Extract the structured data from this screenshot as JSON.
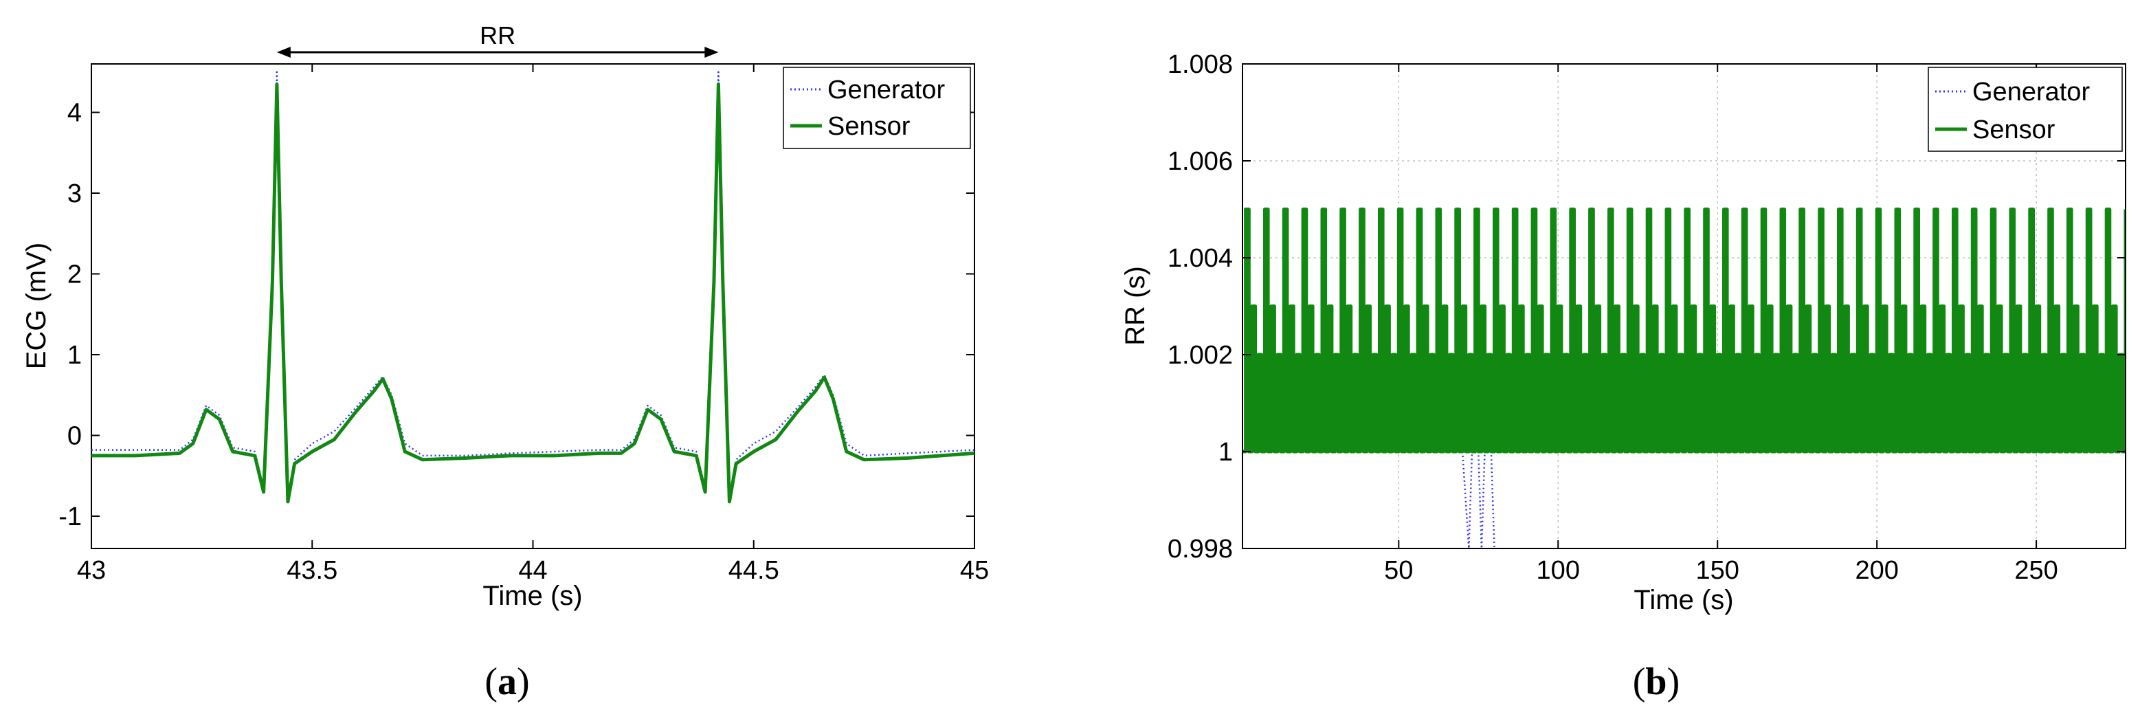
{
  "colors": {
    "generator": "#3333ff",
    "sensor": "#118811"
  },
  "chart_data": [
    {
      "type": "line",
      "panel_label": "a",
      "title": "",
      "xlabel": "Time (s)",
      "ylabel": "ECG (mV)",
      "xlim": [
        43,
        45
      ],
      "ylim": [
        -1.4,
        4.6
      ],
      "xticks": [
        43,
        43.5,
        44,
        44.5,
        45
      ],
      "xtick_labels": [
        "43",
        "43.5",
        "44",
        "44.5",
        "45"
      ],
      "yticks": [
        -1,
        0,
        1,
        2,
        3,
        4
      ],
      "ytick_labels": [
        "-1",
        "0",
        "1",
        "2",
        "3",
        "4"
      ],
      "grid": false,
      "legend_position": "top-right",
      "annotation": {
        "text": "RR",
        "from_x": 43.42,
        "to_x": 44.42
      },
      "series": [
        {
          "name": "Generator",
          "style": "dotted",
          "x": [
            43.0,
            43.1,
            43.2,
            43.23,
            43.26,
            43.29,
            43.32,
            43.37,
            43.39,
            43.41,
            43.42,
            43.43,
            43.445,
            43.46,
            43.5,
            43.55,
            43.6,
            43.64,
            43.66,
            43.68,
            43.71,
            43.75,
            43.85,
            43.95,
            44.05,
            44.15,
            44.2,
            44.23,
            44.26,
            44.29,
            44.32,
            44.37,
            44.39,
            44.41,
            44.42,
            44.43,
            44.445,
            44.46,
            44.5,
            44.55,
            44.6,
            44.64,
            44.66,
            44.68,
            44.71,
            44.75,
            44.85,
            45.0
          ],
          "y": [
            -0.18,
            -0.18,
            -0.18,
            -0.05,
            0.37,
            0.25,
            -0.15,
            -0.2,
            -0.65,
            2.0,
            4.5,
            2.0,
            -0.75,
            -0.3,
            -0.1,
            0.05,
            0.35,
            0.6,
            0.73,
            0.5,
            -0.1,
            -0.25,
            -0.25,
            -0.22,
            -0.2,
            -0.18,
            -0.18,
            -0.05,
            0.37,
            0.25,
            -0.15,
            -0.2,
            -0.65,
            2.0,
            4.5,
            2.0,
            -0.75,
            -0.3,
            -0.1,
            0.05,
            0.35,
            0.6,
            0.75,
            0.5,
            -0.1,
            -0.25,
            -0.22,
            -0.18
          ]
        },
        {
          "name": "Sensor",
          "style": "solid",
          "x": [
            43.0,
            43.1,
            43.2,
            43.23,
            43.26,
            43.29,
            43.32,
            43.37,
            43.39,
            43.41,
            43.42,
            43.43,
            43.445,
            43.46,
            43.5,
            43.55,
            43.6,
            43.64,
            43.66,
            43.68,
            43.71,
            43.75,
            43.85,
            43.95,
            44.05,
            44.15,
            44.2,
            44.23,
            44.26,
            44.29,
            44.32,
            44.37,
            44.39,
            44.41,
            44.42,
            44.43,
            44.445,
            44.46,
            44.5,
            44.55,
            44.6,
            44.64,
            44.66,
            44.68,
            44.71,
            44.75,
            44.85,
            45.0
          ],
          "y": [
            -0.25,
            -0.25,
            -0.22,
            -0.1,
            0.32,
            0.2,
            -0.2,
            -0.25,
            -0.7,
            1.9,
            4.35,
            1.9,
            -0.82,
            -0.35,
            -0.2,
            -0.05,
            0.3,
            0.55,
            0.7,
            0.45,
            -0.2,
            -0.3,
            -0.28,
            -0.25,
            -0.25,
            -0.22,
            -0.22,
            -0.1,
            0.32,
            0.2,
            -0.2,
            -0.25,
            -0.7,
            1.9,
            4.35,
            1.9,
            -0.82,
            -0.35,
            -0.2,
            -0.05,
            0.3,
            0.55,
            0.72,
            0.45,
            -0.2,
            -0.3,
            -0.28,
            -0.22
          ]
        }
      ]
    },
    {
      "type": "line",
      "panel_label": "b",
      "title": "",
      "xlabel": "Time (s)",
      "ylabel": "RR (s)",
      "xlim": [
        1,
        278
      ],
      "ylim": [
        0.998,
        1.008
      ],
      "xticks": [
        50,
        100,
        150,
        200,
        250
      ],
      "xtick_labels": [
        "50",
        "100",
        "150",
        "200",
        "250"
      ],
      "yticks": [
        0.998,
        1.0,
        1.002,
        1.004,
        1.006,
        1.008
      ],
      "ytick_labels": [
        "0.998",
        "1",
        "1.002",
        "1.004",
        "1.006",
        "1.008"
      ],
      "grid": true,
      "legend_position": "top-right",
      "series": [
        {
          "name": "Generator",
          "style": "dotted",
          "pattern_values": [
            1.0,
            1.005,
            1.0,
            1.003,
            1.0,
            1.002
          ],
          "sample_interval": 1.0,
          "x_start": 1,
          "x_end": 278,
          "dip_segment": {
            "x": [
              70,
              72,
              74,
              76,
              78,
              80
            ],
            "y": [
              1.0,
              0.998,
              1.002,
              0.998,
              1.002,
              0.998
            ]
          }
        },
        {
          "name": "Sensor",
          "style": "solid",
          "pattern_values": [
            1.0,
            1.005,
            1.0,
            1.003,
            1.0,
            1.002
          ],
          "sample_interval": 1.0,
          "x_start": 1,
          "x_end": 278
        }
      ]
    }
  ]
}
